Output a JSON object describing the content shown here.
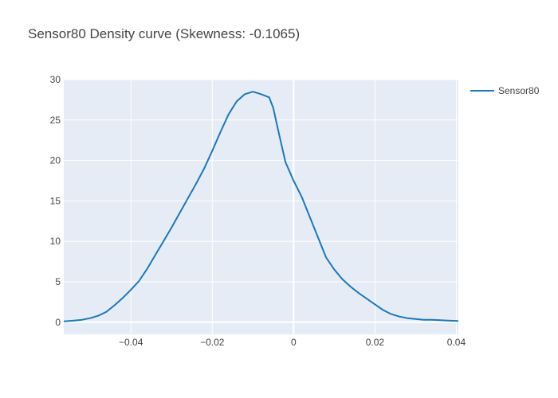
{
  "chart_data": {
    "type": "line",
    "title": "Sensor80 Density curve (Skewness: -0.1065)",
    "xlabel": "",
    "ylabel": "",
    "xlim": [
      -0.0565,
      0.0405
    ],
    "ylim": [
      -1.5,
      30
    ],
    "x_ticks": [
      -0.04,
      -0.02,
      0,
      0.02,
      0.04
    ],
    "x_tick_labels": [
      "−0.04",
      "−0.02",
      "0",
      "0.02",
      "0.04"
    ],
    "y_ticks": [
      0,
      5,
      10,
      15,
      20,
      25,
      30
    ],
    "y_tick_labels": [
      "0",
      "5",
      "10",
      "15",
      "20",
      "25",
      "30"
    ],
    "grid": true,
    "legend_position": "top-right",
    "colors": {
      "plot_bg": "#e5ecf6",
      "grid": "#ffffff",
      "line": "#1f77b4"
    },
    "series": [
      {
        "name": "Sensor80",
        "x": [
          -0.0565,
          -0.054,
          -0.052,
          -0.05,
          -0.048,
          -0.046,
          -0.044,
          -0.042,
          -0.04,
          -0.038,
          -0.036,
          -0.034,
          -0.032,
          -0.03,
          -0.028,
          -0.026,
          -0.024,
          -0.022,
          -0.02,
          -0.018,
          -0.016,
          -0.014,
          -0.012,
          -0.01,
          -0.008,
          -0.006,
          -0.005,
          -0.004,
          -0.003,
          -0.002,
          0,
          0.002,
          0.004,
          0.006,
          0.008,
          0.01,
          0.012,
          0.014,
          0.016,
          0.018,
          0.02,
          0.022,
          0.024,
          0.026,
          0.028,
          0.03,
          0.032,
          0.034,
          0.036,
          0.038,
          0.0405
        ],
        "values": [
          0.1,
          0.2,
          0.3,
          0.5,
          0.8,
          1.3,
          2.1,
          3.0,
          4.0,
          5.1,
          6.6,
          8.3,
          10.0,
          11.7,
          13.5,
          15.3,
          17.1,
          19.0,
          21.2,
          23.5,
          25.7,
          27.3,
          28.2,
          28.5,
          28.2,
          27.8,
          26.5,
          24.2,
          22.0,
          19.8,
          17.5,
          15.5,
          13.0,
          10.5,
          8.0,
          6.5,
          5.3,
          4.4,
          3.6,
          2.9,
          2.2,
          1.5,
          1.0,
          0.7,
          0.5,
          0.4,
          0.3,
          0.3,
          0.25,
          0.2,
          0.15
        ]
      }
    ]
  }
}
